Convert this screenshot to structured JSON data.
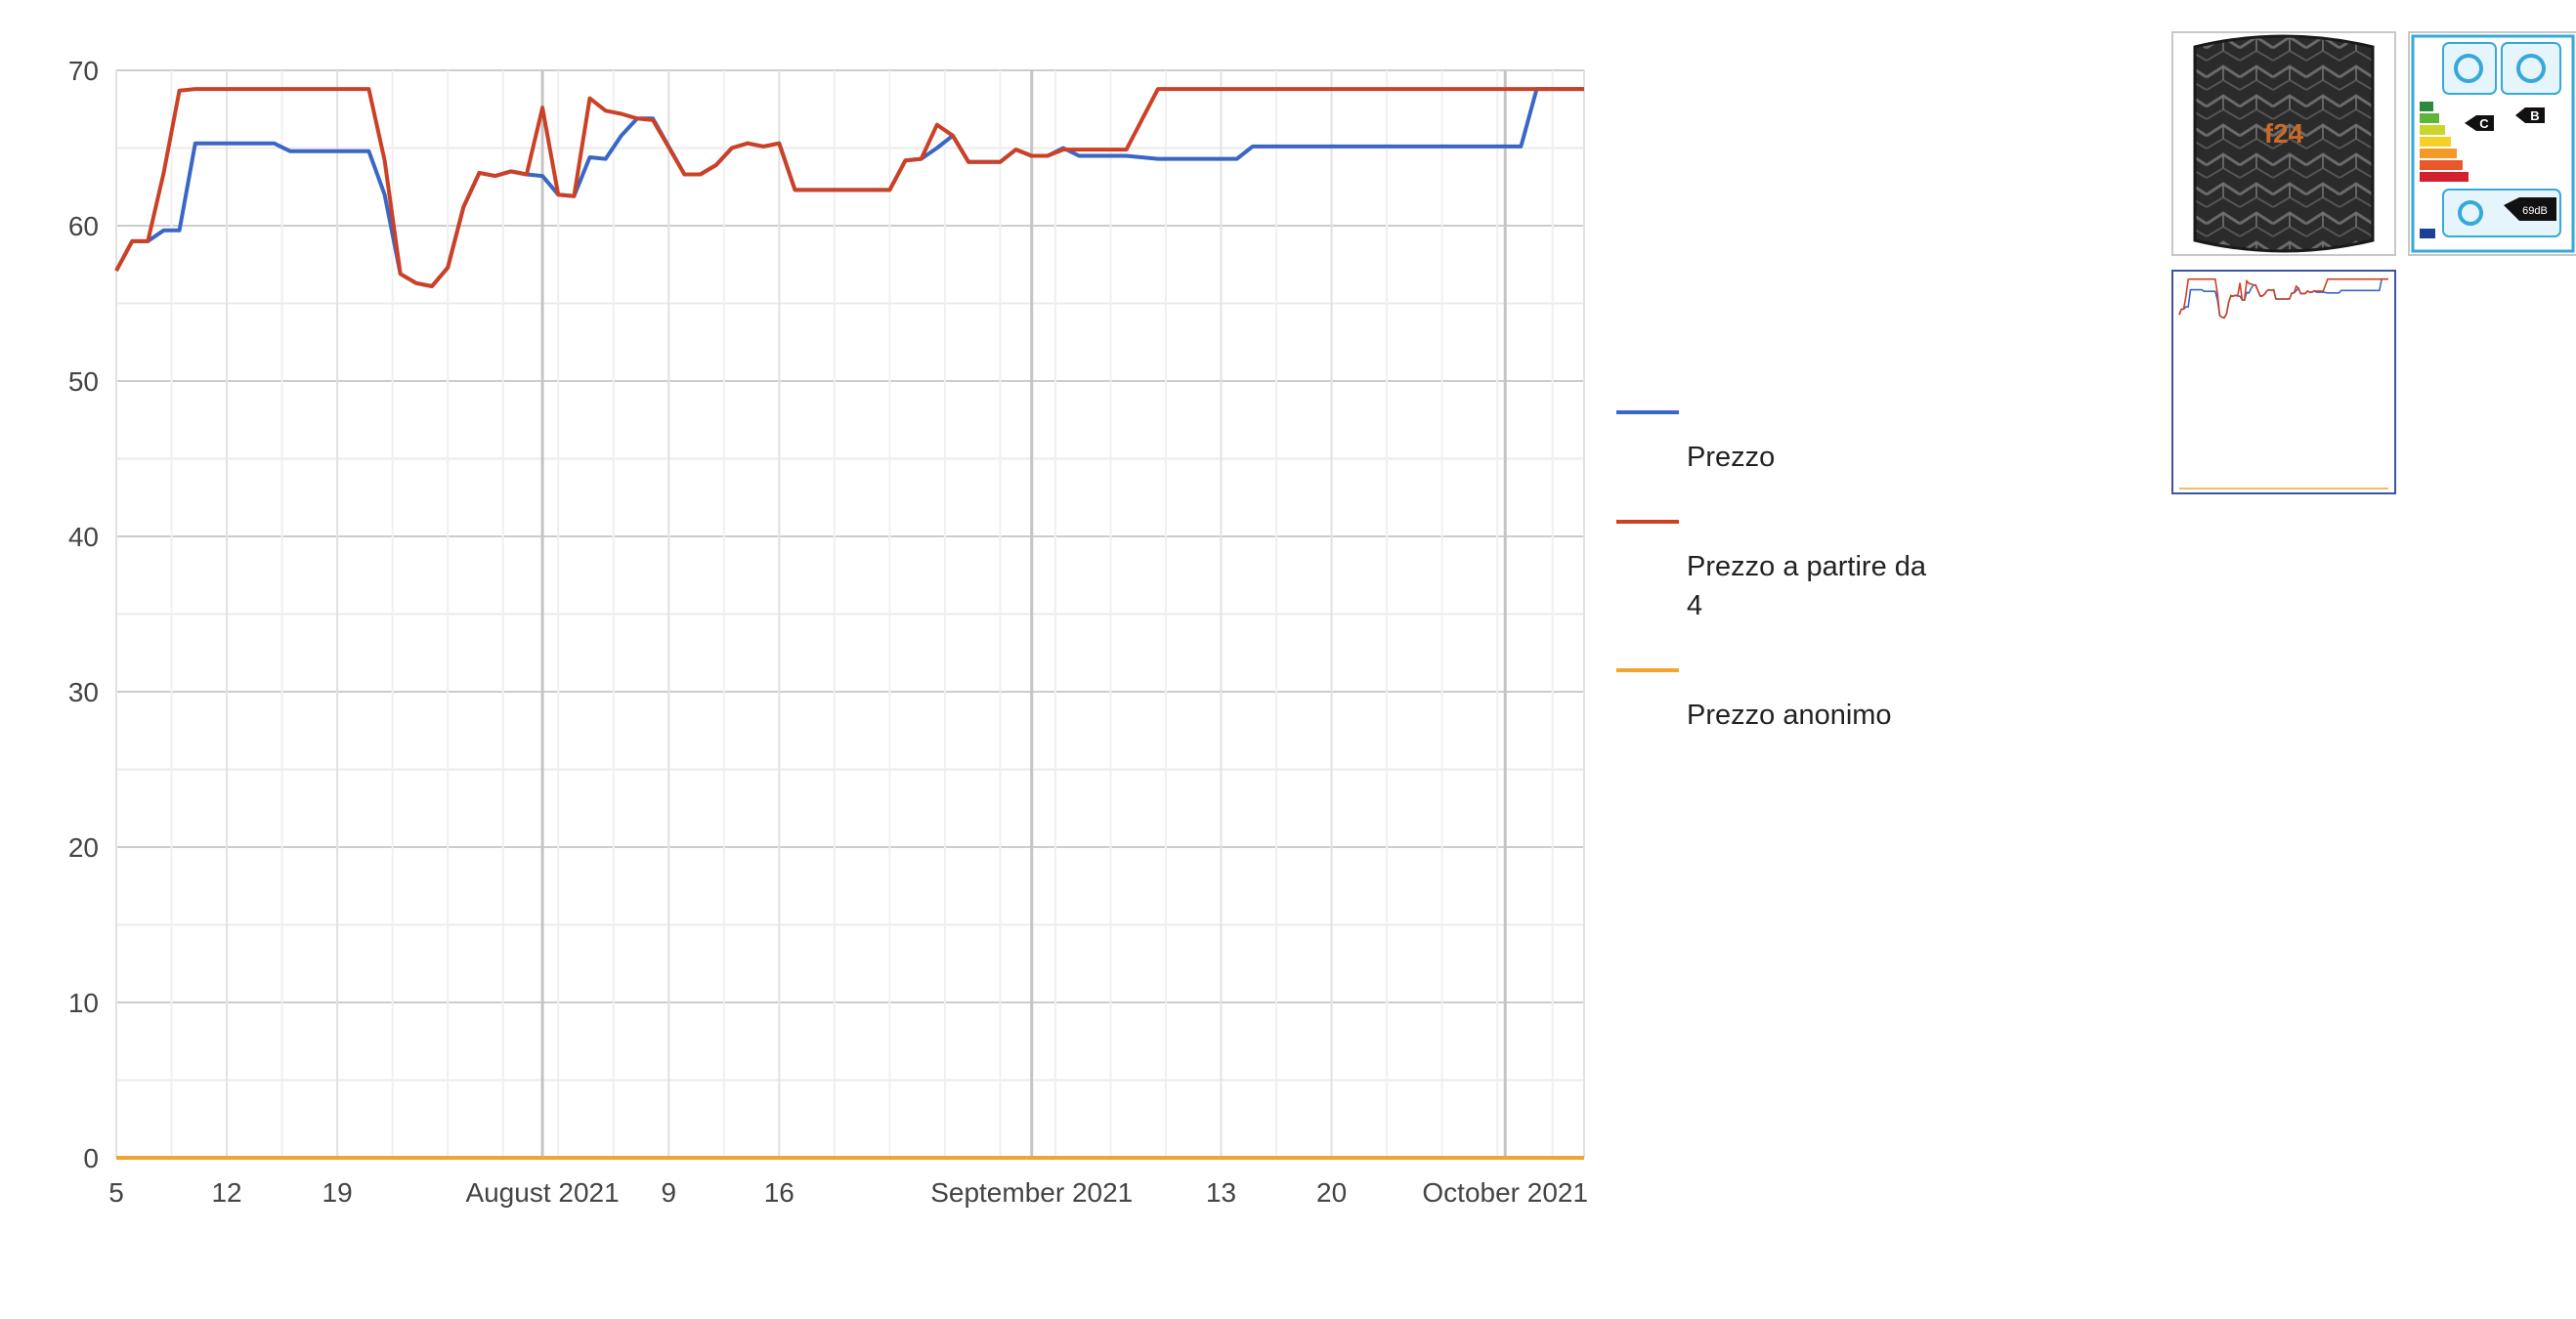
{
  "chart_data": {
    "type": "line",
    "ylim": [
      0,
      70
    ],
    "yticks": [
      "0",
      "10",
      "20",
      "30",
      "40",
      "50",
      "60",
      "70"
    ],
    "xrange": [
      "2021-07-05",
      "2021-10-06"
    ],
    "xticks": [
      {
        "date": "2021-07-05",
        "label": "5"
      },
      {
        "date": "2021-07-12",
        "label": "12"
      },
      {
        "date": "2021-07-19",
        "label": "19"
      },
      {
        "date": "2021-08-01",
        "label": "August 2021"
      },
      {
        "date": "2021-08-09",
        "label": "9"
      },
      {
        "date": "2021-08-16",
        "label": "16"
      },
      {
        "date": "2021-09-01",
        "label": "September 2021"
      },
      {
        "date": "2021-09-13",
        "label": "13"
      },
      {
        "date": "2021-09-20",
        "label": "20"
      },
      {
        "date": "2021-10-01",
        "label": "October 2021"
      }
    ],
    "grid": true,
    "legend_position": "right",
    "series": [
      {
        "name": "Prezzo",
        "color": "#3a66c6",
        "points": [
          [
            "2021-07-05",
            57.1
          ],
          [
            "2021-07-06",
            59.0
          ],
          [
            "2021-07-07",
            59.0
          ],
          [
            "2021-07-08",
            59.7
          ],
          [
            "2021-07-09",
            59.7
          ],
          [
            "2021-07-10",
            65.3
          ],
          [
            "2021-07-11",
            65.3
          ],
          [
            "2021-07-15",
            65.3
          ],
          [
            "2021-07-16",
            64.8
          ],
          [
            "2021-07-21",
            64.8
          ],
          [
            "2021-07-22",
            62.0
          ],
          [
            "2021-07-23",
            56.9
          ],
          [
            "2021-07-24",
            56.3
          ],
          [
            "2021-07-25",
            56.1
          ],
          [
            "2021-07-26",
            57.3
          ],
          [
            "2021-07-27",
            61.2
          ],
          [
            "2021-07-28",
            63.4
          ],
          [
            "2021-07-29",
            63.2
          ],
          [
            "2021-07-30",
            63.5
          ],
          [
            "2021-07-31",
            63.3
          ],
          [
            "2021-08-01",
            63.2
          ],
          [
            "2021-08-02",
            62.0
          ],
          [
            "2021-08-03",
            61.9
          ],
          [
            "2021-08-04",
            64.4
          ],
          [
            "2021-08-05",
            64.3
          ],
          [
            "2021-08-06",
            65.8
          ],
          [
            "2021-08-07",
            66.9
          ],
          [
            "2021-08-08",
            66.9
          ],
          [
            "2021-08-10",
            63.3
          ],
          [
            "2021-08-11",
            63.3
          ],
          [
            "2021-08-12",
            63.9
          ],
          [
            "2021-08-13",
            65.0
          ],
          [
            "2021-08-14",
            65.3
          ],
          [
            "2021-08-15",
            65.1
          ],
          [
            "2021-08-16",
            65.3
          ],
          [
            "2021-08-17",
            62.3
          ],
          [
            "2021-08-23",
            62.3
          ],
          [
            "2021-08-24",
            64.2
          ],
          [
            "2021-08-25",
            64.3
          ],
          [
            "2021-08-26",
            65.0
          ],
          [
            "2021-08-27",
            65.8
          ],
          [
            "2021-08-28",
            64.1
          ],
          [
            "2021-08-30",
            64.1
          ],
          [
            "2021-08-31",
            64.9
          ],
          [
            "2021-09-01",
            64.5
          ],
          [
            "2021-09-02",
            64.5
          ],
          [
            "2021-09-03",
            65.0
          ],
          [
            "2021-09-04",
            64.5
          ],
          [
            "2021-09-07",
            64.5
          ],
          [
            "2021-09-09",
            64.3
          ],
          [
            "2021-09-14",
            64.3
          ],
          [
            "2021-09-15",
            65.1
          ],
          [
            "2021-10-02",
            65.1
          ],
          [
            "2021-10-03",
            68.8
          ],
          [
            "2021-10-06",
            68.8
          ]
        ]
      },
      {
        "name": "Prezzo a partire da 4",
        "color": "#cc4125",
        "points": [
          [
            "2021-07-05",
            57.1
          ],
          [
            "2021-07-06",
            59.0
          ],
          [
            "2021-07-07",
            59.0
          ],
          [
            "2021-07-08",
            63.4
          ],
          [
            "2021-07-09",
            68.7
          ],
          [
            "2021-07-10",
            68.8
          ],
          [
            "2021-07-21",
            68.8
          ],
          [
            "2021-07-22",
            64.2
          ],
          [
            "2021-07-23",
            56.9
          ],
          [
            "2021-07-24",
            56.3
          ],
          [
            "2021-07-25",
            56.1
          ],
          [
            "2021-07-26",
            57.3
          ],
          [
            "2021-07-27",
            61.2
          ],
          [
            "2021-07-28",
            63.4
          ],
          [
            "2021-07-29",
            63.2
          ],
          [
            "2021-07-30",
            63.5
          ],
          [
            "2021-07-31",
            63.3
          ],
          [
            "2021-08-01",
            67.6
          ],
          [
            "2021-08-02",
            62.0
          ],
          [
            "2021-08-03",
            61.9
          ],
          [
            "2021-08-04",
            68.2
          ],
          [
            "2021-08-05",
            67.4
          ],
          [
            "2021-08-06",
            67.2
          ],
          [
            "2021-08-07",
            66.9
          ],
          [
            "2021-08-08",
            66.8
          ],
          [
            "2021-08-10",
            63.3
          ],
          [
            "2021-08-11",
            63.3
          ],
          [
            "2021-08-12",
            63.9
          ],
          [
            "2021-08-13",
            65.0
          ],
          [
            "2021-08-14",
            65.3
          ],
          [
            "2021-08-15",
            65.1
          ],
          [
            "2021-08-16",
            65.3
          ],
          [
            "2021-08-17",
            62.3
          ],
          [
            "2021-08-23",
            62.3
          ],
          [
            "2021-08-24",
            64.2
          ],
          [
            "2021-08-25",
            64.3
          ],
          [
            "2021-08-26",
            66.5
          ],
          [
            "2021-08-27",
            65.8
          ],
          [
            "2021-08-28",
            64.1
          ],
          [
            "2021-08-30",
            64.1
          ],
          [
            "2021-08-31",
            64.9
          ],
          [
            "2021-09-01",
            64.5
          ],
          [
            "2021-09-02",
            64.5
          ],
          [
            "2021-09-03",
            64.9
          ],
          [
            "2021-09-07",
            64.9
          ],
          [
            "2021-09-09",
            68.8
          ],
          [
            "2021-10-06",
            68.8
          ]
        ]
      },
      {
        "name": "Prezzo anonimo",
        "color": "#f1a430",
        "points": [
          [
            "2021-07-05",
            0
          ],
          [
            "2021-10-06",
            0
          ]
        ]
      }
    ]
  },
  "thumbnails": [
    {
      "name": "tire-photo-thumbnail",
      "selected": false,
      "brand_marking": "f24"
    },
    {
      "name": "eu-tire-label-thumbnail",
      "selected": false,
      "label_grades": [
        "C",
        "B"
      ],
      "noise": "69dB"
    },
    {
      "name": "price-chart-thumbnail",
      "selected": true
    }
  ]
}
